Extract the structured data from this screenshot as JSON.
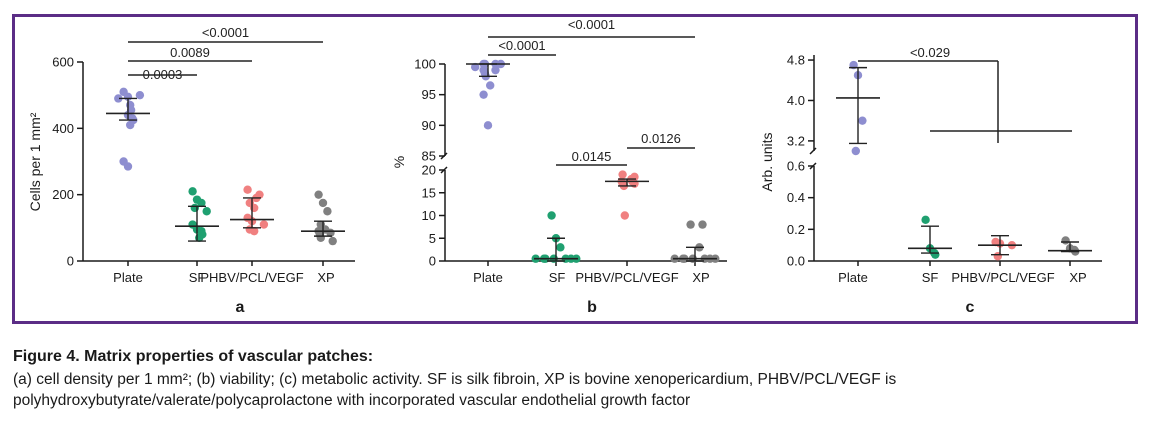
{
  "chart_data": [
    {
      "type": "scatter",
      "panel_label": "a",
      "ylabel": "Cells per 1 mm²",
      "ylim": [
        0,
        600
      ],
      "yticks": [
        0,
        200,
        400,
        600
      ],
      "categories": [
        "Plate",
        "SF",
        "PHBV/PCL/VEGF",
        "XP"
      ],
      "points": [
        [
          510,
          495,
          500,
          490,
          470,
          455,
          440,
          430,
          425,
          410,
          300,
          285
        ],
        [
          210,
          185,
          175,
          160,
          150,
          110,
          95,
          90,
          80,
          70
        ],
        [
          215,
          200,
          190,
          175,
          160,
          130,
          120,
          110,
          95,
          90
        ],
        [
          200,
          175,
          150,
          110,
          95,
          90,
          85,
          80,
          70,
          60
        ]
      ],
      "median": [
        445,
        105,
        125,
        90
      ],
      "err_low": [
        425,
        60,
        100,
        75
      ],
      "err_high": [
        490,
        165,
        190,
        120
      ],
      "comparisons": [
        {
          "from": "Plate",
          "to": "SF",
          "label": "0.0003"
        },
        {
          "from": "Plate",
          "to": "PHBV/PCL/VEGF",
          "label": "0.0089"
        },
        {
          "from": "Plate",
          "to": "XP",
          "label": "<0.0001"
        }
      ],
      "colors": [
        "#8e8ed0",
        "#1fa070",
        "#f08080",
        "#808080"
      ]
    },
    {
      "type": "scatter",
      "panel_label": "b",
      "ylabel": "%",
      "axis_break": true,
      "upper_ylim": [
        85,
        100
      ],
      "upper_yticks": [
        85,
        90,
        95,
        100
      ],
      "lower_ylim": [
        0,
        20
      ],
      "lower_yticks": [
        0,
        5,
        10,
        15,
        20
      ],
      "categories": [
        "Plate",
        "SF",
        "PHBV/PCL/VEGF",
        "XP"
      ],
      "points": [
        [
          100,
          100,
          100,
          100,
          99.5,
          99,
          99,
          98.5,
          98,
          96.5,
          95,
          90
        ],
        [
          10,
          5,
          3,
          0.5,
          0.5,
          0.5,
          0.5,
          0.5,
          0.5,
          0.5
        ],
        [
          19,
          18.5,
          18,
          17.5,
          17.5,
          17,
          17,
          16.5,
          10
        ],
        [
          8,
          8,
          3,
          0.5,
          0.5,
          0.5,
          0.5,
          0.5,
          0.5,
          0.5
        ]
      ],
      "median": [
        100,
        0.5,
        17.5,
        0.5
      ],
      "err_low": [
        98,
        0,
        16.5,
        0
      ],
      "err_high": [
        100,
        5,
        18,
        3
      ],
      "comparisons": [
        {
          "from": "Plate",
          "to": "SF",
          "label": "<0.0001"
        },
        {
          "from": "Plate",
          "to": "XP",
          "label": "<0.0001"
        },
        {
          "from": "SF",
          "to": "PHBV/PCL/VEGF",
          "label": "0.0145"
        },
        {
          "from": "PHBV/PCL/VEGF",
          "to": "XP",
          "label": "0.0126"
        }
      ],
      "colors": [
        "#8e8ed0",
        "#1fa070",
        "#f08080",
        "#808080"
      ]
    },
    {
      "type": "scatter",
      "panel_label": "c",
      "ylabel": "Arb. units",
      "axis_break": true,
      "upper_ylim": [
        3.0,
        4.9
      ],
      "upper_yticks": [
        3.2,
        4.0,
        4.8
      ],
      "lower_ylim": [
        0,
        0.6
      ],
      "lower_yticks": [
        0.0,
        0.2,
        0.4,
        0.6
      ],
      "categories": [
        "Plate",
        "SF",
        "PHBV/PCL/VEGF",
        "XP"
      ],
      "points": [
        [
          4.7,
          4.5,
          3.6,
          3.0
        ],
        [
          0.26,
          0.08,
          0.05,
          0.04
        ],
        [
          0.12,
          0.11,
          0.1,
          0.03
        ],
        [
          0.13,
          0.08,
          0.07,
          0.06
        ]
      ],
      "median": [
        4.05,
        0.08,
        0.1,
        0.065
      ],
      "err_low": [
        3.15,
        0.05,
        0.04,
        0.06
      ],
      "err_high": [
        4.65,
        0.22,
        0.16,
        0.12
      ],
      "comparisons": [
        {
          "from": "Plate",
          "to": "SF",
          "label": "<0.029"
        }
      ],
      "colors": [
        "#8e8ed0",
        "#1fa070",
        "#f08080",
        "#808080"
      ]
    }
  ],
  "caption": {
    "title": "Figure 4. Matrix properties of vascular patches:",
    "body": "(a) cell density per 1 mm²; (b) viability; (c) metabolic activity. SF is silk fibroin, XP is bovine xenopericardium, PHBV/PCL/VEGF is polyhydroxybutyrate/valerate/polycaprolactone with incorporated vascular endothelial growth factor"
  }
}
